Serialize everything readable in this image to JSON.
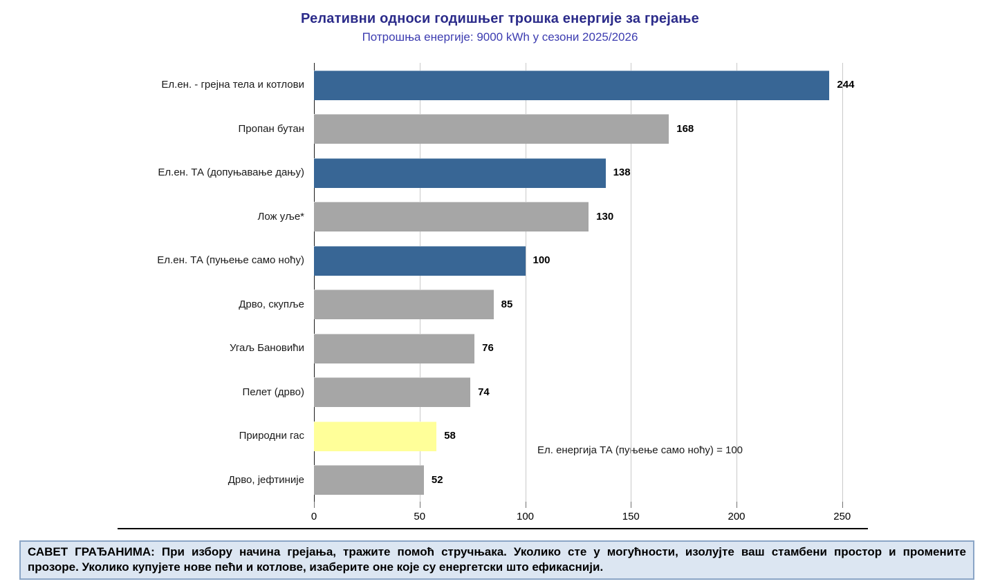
{
  "chart_data": {
    "type": "bar",
    "orientation": "horizontal",
    "title": "Релативни односи годишњег трошка енергије за грејање",
    "subtitle": "Потрошња енергије: 9000 kWh у сезони 2025/2026",
    "categories": [
      "Ел.ен. - грејна тела и котлови",
      "Пропан бутан",
      "Ел.ен. ТА (допуњавање дању)",
      "Лож уље*",
      "Ел.ен. ТА (пуњење само ноћу)",
      "Дрво, скупље",
      "Угаљ Бановићи",
      "Пелет (дрво)",
      "Природни гас",
      "Дрво, јефтиније"
    ],
    "values": [
      244,
      168,
      138,
      130,
      100,
      85,
      76,
      74,
      58,
      52
    ],
    "bar_colors": [
      "#386695",
      "#a6a6a6",
      "#386695",
      "#a6a6a6",
      "#386695",
      "#a6a6a6",
      "#a6a6a6",
      "#a6a6a6",
      "#ffff99",
      "#a6a6a6"
    ],
    "x_ticks": [
      0,
      50,
      100,
      150,
      200,
      250
    ],
    "xlim": [
      0,
      262
    ],
    "grid": "vertical",
    "legend": "none",
    "value_labels": true,
    "annotation": "Ел. енергија ТА (пуњење само ноћу) = 100"
  },
  "palette": {
    "electricity_bar": "#386695",
    "other_fuel_bar": "#a6a6a6",
    "natural_gas_bar": "#ffff99",
    "title_text": "#2b2b8a",
    "subtitle_text": "#3c3cb0",
    "footer_background": "#dce6f2",
    "footer_border": "#8aa5c6"
  },
  "footer": {
    "line1": "САВЕТ ГРАЂАНИМА: При избору начина грејања, тражите помоћ стручњака. Уколико сте у могућности, изолујте ваш стамбени простор и промените",
    "line2": "прозоре. Уколико купујете нове пећи и котлове, изаберите оне које су енергетски што ефикаснији."
  }
}
